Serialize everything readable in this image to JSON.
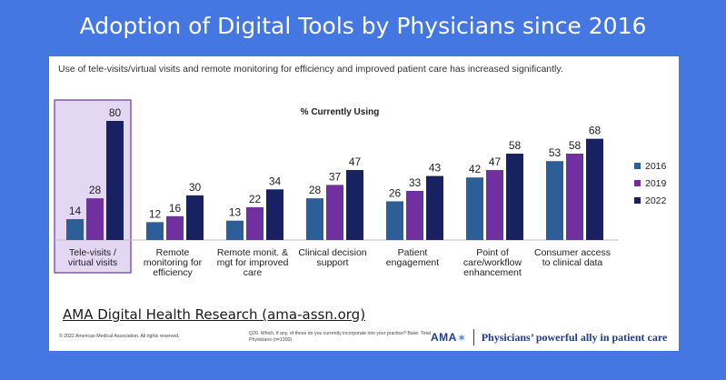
{
  "page_title": "Adoption of Digital Tools by Physicians since 2016",
  "subtitle": "Use of tele-visits/virtual visits and remote monitoring  for efficiency and improved patient care has increased significantly.",
  "source_link": "AMA Digital Health Research (ama-assn.org)",
  "copyright": "© 2022  American Medical Association.  All rights reserved.",
  "footnote": "Q20. Which, if any, of these do you currently incorporate into your practice? Base: Total Physicians (n=1300)",
  "logo": {
    "text": "AMA",
    "tagline": "Physicians’ powerful ally in patient care"
  },
  "colors": {
    "s2016": "#2c5f97",
    "s2019": "#7030a0",
    "s2022": "#182262",
    "highlight_bg": "#e3d7f3",
    "highlight_border": "#6a3a96",
    "background": "#4477e1"
  },
  "chart_data": {
    "type": "bar",
    "title": "% Currently Using",
    "categories": [
      [
        "Tele-visits /",
        "virtual visits"
      ],
      [
        "Remote",
        "monitoring for",
        "efficiency"
      ],
      [
        "Remote monit. &",
        "mgt for improved",
        "care"
      ],
      [
        "Clinical decision",
        "support"
      ],
      [
        "Patient",
        "engagement"
      ],
      [
        "Point of",
        "care/workflow",
        "enhancement"
      ],
      [
        "Consumer access",
        "to clinical data"
      ]
    ],
    "series": [
      {
        "name": "2016",
        "values": [
          14,
          12,
          13,
          28,
          26,
          42,
          53
        ]
      },
      {
        "name": "2019",
        "values": [
          28,
          16,
          22,
          37,
          33,
          47,
          58
        ]
      },
      {
        "name": "2022",
        "values": [
          80,
          30,
          34,
          47,
          43,
          58,
          68
        ]
      }
    ],
    "highlighted_category_index": 0,
    "ylim": [
      0,
      80
    ],
    "legend_position": "right",
    "grid": false
  }
}
